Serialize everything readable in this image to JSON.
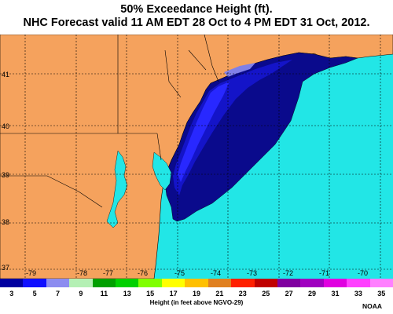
{
  "title_line1": "50% Exceedance Height (ft).",
  "title_line2": "NHC Forecast valid 11 AM EDT 28 Oct to 4 PM EDT 31 Oct, 2012.",
  "lat_labels": [
    "41",
    "40",
    "39",
    "38",
    "37"
  ],
  "lon_labels": [
    "-79",
    "-78",
    "-77",
    "-76",
    "-75",
    "-74",
    "-73",
    "-72",
    "-71",
    "-70"
  ],
  "colors": {
    "land": "#f5a25d",
    "ocean": "#22e6e6",
    "surge_dark": "#0a0a8c",
    "surge_mid": "#1414c8",
    "surge_bright": "#2828ff",
    "surge_light": "#8080e8",
    "grid": "#000000"
  },
  "legend": {
    "values": [
      "3",
      "5",
      "7",
      "9",
      "11",
      "13",
      "15",
      "17",
      "19",
      "21",
      "23",
      "25",
      "27",
      "29",
      "31",
      "33",
      "35"
    ],
    "colors": [
      "#0000a0",
      "#1010ff",
      "#8c8cf0",
      "#b4f0b4",
      "#00a000",
      "#00d000",
      "#80ff00",
      "#ffff00",
      "#ffc000",
      "#e08020",
      "#ff2000",
      "#c00000",
      "#8000a0",
      "#a000c0",
      "#e000e0",
      "#ff40ff",
      "#ff80ff"
    ],
    "units": "Height (in feet above NGVO-29)"
  },
  "credit": "NOAA"
}
